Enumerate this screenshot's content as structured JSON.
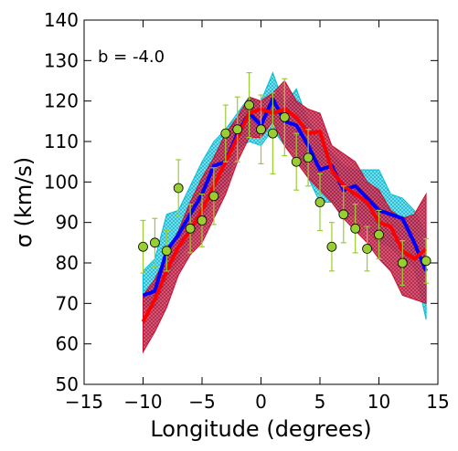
{
  "chart_data": {
    "type": "line",
    "xlabel": "Longitude (degrees)",
    "ylabel": "σ (km/s)",
    "annotation": "b = -4.0",
    "xlim": [
      -15,
      15
    ],
    "ylim": [
      50,
      140
    ],
    "xticks": [
      -15,
      -10,
      -5,
      0,
      5,
      10,
      15
    ],
    "xtick_labels": [
      "−15",
      "−10",
      "−5",
      "0",
      "5",
      "10",
      "15"
    ],
    "yticks": [
      50,
      60,
      70,
      80,
      90,
      100,
      110,
      120,
      130,
      140
    ],
    "ytick_labels": [
      "50",
      "60",
      "70",
      "80",
      "90",
      "100",
      "110",
      "120",
      "130",
      "140"
    ],
    "grid": false,
    "bands": [
      {
        "color": "#00c0d8",
        "hatch": "cyan",
        "x": [
          -10,
          -9,
          -8,
          -7,
          -6,
          -5,
          -4,
          -3,
          -2,
          -1,
          0,
          1,
          2,
          3,
          4,
          5,
          6,
          7,
          8,
          9,
          10,
          11,
          12,
          13,
          14
        ],
        "upper": [
          78,
          81,
          92,
          93,
          99,
          105,
          110,
          113,
          117,
          121,
          120,
          127,
          119,
          123,
          115,
          111,
          107,
          104,
          103,
          103,
          103,
          97,
          96,
          93,
          87
        ],
        "lower": [
          69,
          69,
          76,
          81,
          86,
          90,
          96,
          99,
          108,
          110,
          109,
          113,
          109,
          108,
          101,
          95,
          95,
          91,
          92,
          88,
          85,
          84,
          81,
          79,
          66
        ]
      },
      {
        "color": "#c8102e",
        "hatch": "crimson",
        "x": [
          -10,
          -9,
          -8,
          -7,
          -6,
          -5,
          -4,
          -3,
          -2,
          -1,
          0,
          1,
          2,
          3,
          4,
          5,
          6,
          7,
          8,
          9,
          10,
          11,
          12,
          13,
          14
        ],
        "upper": [
          72,
          76,
          82,
          88,
          95,
          101,
          106,
          112,
          116,
          121,
          120,
          122,
          125,
          120,
          118,
          117,
          109,
          107,
          105,
          100,
          98,
          93,
          91,
          92,
          97
        ],
        "lower": [
          58,
          63,
          69,
          77,
          82,
          85,
          91,
          97,
          105,
          111,
          111,
          115,
          109,
          105,
          101,
          98,
          95,
          91,
          88,
          85,
          81,
          78,
          72,
          71,
          70
        ]
      }
    ],
    "series": [
      {
        "color": "#0000ff",
        "x": [
          -10,
          -9,
          -8,
          -7,
          -6,
          -5,
          -4,
          -3,
          -2,
          -1,
          0,
          1,
          2,
          3,
          4,
          5,
          6,
          7,
          8,
          9,
          10,
          11,
          12,
          13,
          14
        ],
        "values": [
          72,
          73,
          83,
          87,
          92,
          97,
          104,
          105,
          112,
          117,
          114,
          120.5,
          115,
          114,
          109,
          103,
          104,
          98,
          99,
          96,
          93,
          92,
          91,
          85,
          78
        ]
      },
      {
        "color": "#ff0000",
        "x": [
          -10,
          -9,
          -8,
          -7,
          -6,
          -5,
          -4,
          -3,
          -2,
          -1,
          0,
          1,
          2,
          3,
          4,
          5,
          6,
          7,
          8,
          9,
          10,
          11,
          12,
          13,
          14
        ],
        "values": [
          65.5,
          71,
          78,
          84,
          88,
          93,
          99,
          105,
          111,
          117,
          118,
          117,
          118,
          116,
          112,
          112.5,
          103,
          99,
          97,
          95,
          90,
          89,
          83,
          81,
          83.5
        ]
      }
    ],
    "points": {
      "marker_color": "#9acd32",
      "errorbar_color": "#9acd32",
      "x": [
        -10,
        -9,
        -8,
        -7,
        -6,
        -5,
        -4,
        -3,
        -2,
        -1,
        0,
        1,
        2,
        3,
        4,
        5,
        6,
        7,
        8,
        9,
        10,
        12,
        14
      ],
      "y": [
        84,
        85,
        83,
        98.5,
        88.5,
        90.5,
        96.5,
        112,
        113,
        119,
        113,
        112,
        116,
        105,
        106,
        95,
        84,
        92,
        88.5,
        83.5,
        87,
        80,
        80.5
      ],
      "err": [
        6.5,
        6,
        5,
        7,
        6,
        6.5,
        7,
        7,
        8,
        8,
        8.5,
        10,
        9.5,
        7,
        7,
        7,
        6,
        7,
        6,
        5.5,
        6,
        5.5,
        5.5
      ]
    }
  }
}
